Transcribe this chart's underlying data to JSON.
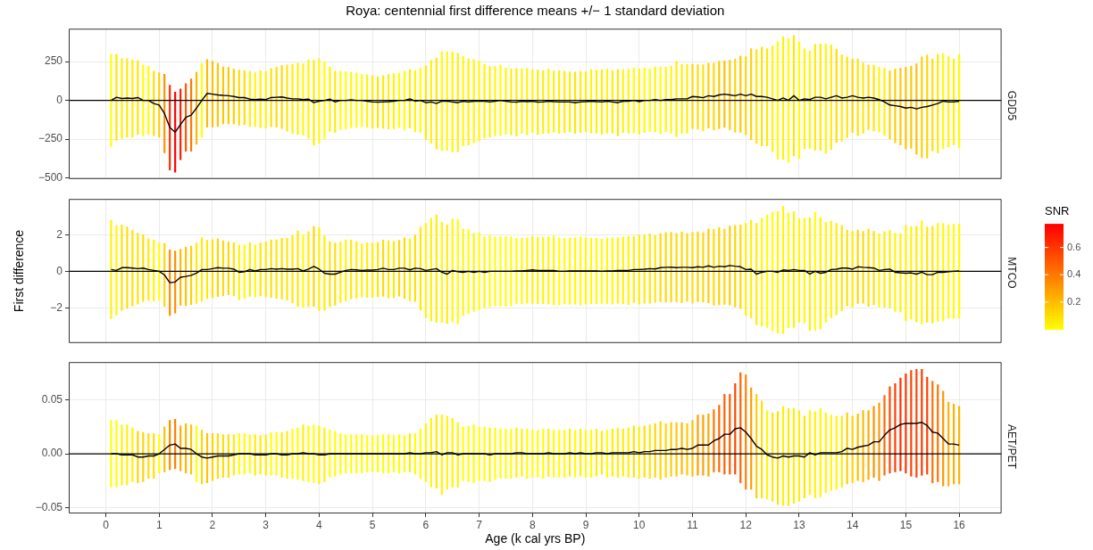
{
  "chart_data": [
    {
      "type": "line",
      "title": "Roya: centennial first difference means +/− 1 standard deviation",
      "subtitle": "GDD5",
      "xlim": [
        -0.695,
        16.795
      ],
      "xticks": [
        0,
        1,
        2,
        3,
        4,
        5,
        6,
        7,
        8,
        9,
        10,
        11,
        12,
        13,
        14,
        15,
        16
      ],
      "ylim": [
        -507,
        462
      ],
      "yticks": [
        {
          "value": -500,
          "label": "−500"
        },
        {
          "value": -250,
          "label": "−250"
        },
        0,
        250
      ],
      "tick_labels": "y",
      "grid": true,
      "ref_lines": [
        {
          "axis": "y",
          "value": 0,
          "color": "#000000"
        }
      ],
      "x": [
        0.1,
        0.2,
        0.3,
        0.4,
        0.5,
        0.6,
        0.7,
        0.8,
        0.9,
        1.0,
        1.1,
        1.2,
        1.3,
        1.4,
        1.5,
        1.6,
        1.7,
        1.8,
        1.9,
        2.0,
        2.1,
        2.2,
        2.3,
        2.4,
        2.5,
        2.6,
        2.7,
        2.8,
        2.9,
        3.0,
        3.1,
        3.2,
        3.3,
        3.4,
        3.5,
        3.6,
        3.7,
        3.8,
        3.9,
        4.0,
        4.1,
        4.2,
        4.3,
        4.4,
        4.5,
        4.6,
        4.7,
        4.8,
        4.9,
        5.0,
        5.1,
        5.2,
        5.3,
        5.4,
        5.5,
        5.6,
        5.7,
        5.8,
        5.9,
        6.0,
        6.1,
        6.2,
        6.3,
        6.4,
        6.5,
        6.6,
        6.7,
        6.8,
        6.9,
        7.0,
        7.1,
        7.2,
        7.3,
        7.4,
        7.5,
        7.6,
        7.7,
        7.8,
        7.9,
        8.0,
        8.1,
        8.2,
        8.3,
        8.4,
        8.5,
        8.6,
        8.7,
        8.8,
        8.9,
        9.0,
        9.1,
        9.2,
        9.3,
        9.4,
        9.5,
        9.6,
        9.7,
        9.8,
        9.9,
        10.0,
        10.1,
        10.2,
        10.3,
        10.4,
        10.5,
        10.6,
        10.7,
        10.8,
        10.9,
        11.0,
        11.1,
        11.2,
        11.3,
        11.4,
        11.5,
        11.6,
        11.7,
        11.8,
        11.9,
        12.0,
        12.1,
        12.2,
        12.3,
        12.4,
        12.5,
        12.6,
        12.7,
        12.8,
        12.9,
        13.0,
        13.1,
        13.2,
        13.3,
        13.4,
        13.5,
        13.6,
        13.7,
        13.8,
        13.9,
        14.0,
        14.1,
        14.2,
        14.3,
        14.4,
        14.5,
        14.6,
        14.7,
        14.8,
        14.9,
        15.0,
        15.1,
        15.2,
        15.3,
        15.4,
        15.5,
        15.6,
        15.7,
        15.8,
        15.9,
        16.0
      ],
      "series": [
        {
          "color": "#000000",
          "values": [
            0,
            20,
            12,
            15,
            12,
            18,
            0,
            0,
            -20,
            -30,
            -85,
            -175,
            -205,
            -155,
            -110,
            -95,
            -50,
            0,
            45,
            40,
            35,
            32,
            30,
            25,
            18,
            18,
            8,
            5,
            8,
            5,
            18,
            20,
            22,
            15,
            10,
            10,
            5,
            8,
            -15,
            -5,
            0,
            8,
            -10,
            0,
            0,
            3,
            0,
            0,
            -5,
            -10,
            -12,
            -10,
            -8,
            -5,
            0,
            0,
            10,
            -5,
            0,
            -15,
            -10,
            -20,
            -5,
            -5,
            -10,
            -15,
            -5,
            -10,
            -5,
            -5,
            -5,
            -10,
            -5,
            0,
            -5,
            -10,
            -12,
            -5,
            -8,
            -5,
            -12,
            -10,
            -5,
            -8,
            -10,
            -10,
            -10,
            -15,
            -10,
            -8,
            -5,
            -8,
            -10,
            -5,
            -10,
            -15,
            -5,
            -5,
            0,
            -8,
            0,
            0,
            5,
            0,
            5,
            5,
            10,
            10,
            10,
            25,
            22,
            17,
            30,
            25,
            35,
            40,
            35,
            30,
            40,
            30,
            40,
            25,
            25,
            20,
            10,
            0,
            15,
            0,
            30,
            0,
            10,
            5,
            20,
            20,
            10,
            20,
            30,
            15,
            20,
            30,
            20,
            15,
            20,
            15,
            5,
            -10,
            -30,
            -35,
            -40,
            -50,
            -45,
            -55,
            -45,
            -40,
            -30,
            -20,
            -5,
            -10,
            -10,
            -5
          ],
          "errors": [
            300,
            280,
            258,
            255,
            250,
            240,
            230,
            222,
            210,
            210,
            255,
            275,
            260,
            230,
            220,
            235,
            235,
            240,
            220,
            215,
            205,
            185,
            185,
            180,
            180,
            175,
            180,
            175,
            185,
            185,
            190,
            195,
            205,
            215,
            225,
            232,
            232,
            255,
            275,
            275,
            250,
            210,
            200,
            190,
            187,
            180,
            178,
            170,
            172,
            172,
            165,
            172,
            178,
            180,
            178,
            190,
            190,
            200,
            210,
            240,
            270,
            295,
            320,
            320,
            325,
            320,
            290,
            280,
            270,
            260,
            240,
            230,
            225,
            230,
            215,
            215,
            220,
            210,
            215,
            205,
            210,
            205,
            210,
            200,
            205,
            200,
            195,
            200,
            200,
            195,
            207,
            206,
            210,
            208,
            203,
            216,
            205,
            207,
            212,
            212,
            210,
            204,
            212,
            218,
            210,
            217,
            245,
            223,
            223,
            210,
            210,
            215,
            210,
            217,
            220,
            216,
            225,
            238,
            248,
            254,
            295,
            305,
            320,
            315,
            343,
            381,
            398,
            400,
            390,
            378,
            324,
            316,
            343,
            345,
            355,
            338,
            302,
            281,
            262,
            238,
            249,
            229,
            210,
            214,
            210,
            219,
            221,
            240,
            250,
            265,
            267,
            293,
            327,
            334,
            298,
            320,
            309,
            293,
            278,
            303
          ]
        }
      ]
    },
    {
      "type": "line",
      "subtitle": "MTCO",
      "ylabel": "First difference",
      "clabel": "SNR",
      "clim": [
        0,
        0.77
      ],
      "cticks": [
        0.2,
        0.4,
        0.6
      ],
      "xlim": [
        -0.695,
        16.795
      ],
      "xticks": [
        0,
        1,
        2,
        3,
        4,
        5,
        6,
        7,
        8,
        9,
        10,
        11,
        12,
        13,
        14,
        15,
        16
      ],
      "ylim": [
        -3.91,
        3.95
      ],
      "yticks": [
        {
          "value": -2,
          "label": "−2"
        },
        0,
        2
      ],
      "tick_labels": "y",
      "grid": true,
      "ref_lines": [
        {
          "axis": "y",
          "value": 0,
          "color": "#000000"
        }
      ],
      "x": [
        0.1,
        0.2,
        0.3,
        0.4,
        0.5,
        0.6,
        0.7,
        0.8,
        0.9,
        1.0,
        1.1,
        1.2,
        1.3,
        1.4,
        1.5,
        1.6,
        1.7,
        1.8,
        1.9,
        2.0,
        2.1,
        2.2,
        2.3,
        2.4,
        2.5,
        2.6,
        2.7,
        2.8,
        2.9,
        3.0,
        3.1,
        3.2,
        3.3,
        3.4,
        3.5,
        3.6,
        3.7,
        3.8,
        3.9,
        4.0,
        4.1,
        4.2,
        4.3,
        4.4,
        4.5,
        4.6,
        4.7,
        4.8,
        4.9,
        5.0,
        5.1,
        5.2,
        5.3,
        5.4,
        5.5,
        5.6,
        5.7,
        5.8,
        5.9,
        6.0,
        6.1,
        6.2,
        6.3,
        6.4,
        6.5,
        6.6,
        6.7,
        6.8,
        6.9,
        7.0,
        7.1,
        7.2,
        7.3,
        7.4,
        7.5,
        7.6,
        7.7,
        7.8,
        7.9,
        8.0,
        8.1,
        8.2,
        8.3,
        8.4,
        8.5,
        8.6,
        8.7,
        8.8,
        8.9,
        9.0,
        9.1,
        9.2,
        9.3,
        9.4,
        9.5,
        9.6,
        9.7,
        9.8,
        9.9,
        10.0,
        10.1,
        10.2,
        10.3,
        10.4,
        10.5,
        10.6,
        10.7,
        10.8,
        10.9,
        11.0,
        11.1,
        11.2,
        11.3,
        11.4,
        11.5,
        11.6,
        11.7,
        11.8,
        11.9,
        12.0,
        12.1,
        12.2,
        12.3,
        12.4,
        12.5,
        12.6,
        12.7,
        12.8,
        12.9,
        13.0,
        13.1,
        13.2,
        13.3,
        13.4,
        13.5,
        13.6,
        13.7,
        13.8,
        13.9,
        14.0,
        14.1,
        14.2,
        14.3,
        14.4,
        14.5,
        14.6,
        14.7,
        14.8,
        14.9,
        15.0,
        15.1,
        15.2,
        15.3,
        15.4,
        15.5,
        15.6,
        15.7,
        15.8,
        15.9,
        16.0
      ],
      "series": [
        {
          "color": "#000000",
          "values": [
            0.1,
            0.05,
            0.2,
            0.2,
            0.18,
            0.15,
            0.18,
            0.1,
            0.05,
            0,
            -0.2,
            -0.62,
            -0.58,
            -0.32,
            -0.28,
            -0.22,
            -0.1,
            0.1,
            0.1,
            0.15,
            0.2,
            0.17,
            0.17,
            0.12,
            -0.05,
            -0.02,
            0.1,
            0.02,
            0.1,
            0.1,
            0.15,
            0.12,
            0.15,
            0.12,
            0.12,
            0.15,
            0.02,
            0.12,
            0.27,
            0.12,
            -0.1,
            -0.15,
            -0.15,
            -0.05,
            0.05,
            0.1,
            0.08,
            0.05,
            0.07,
            0.07,
            0.1,
            0.17,
            0.1,
            0.1,
            0.17,
            0.17,
            0.08,
            0.17,
            0.15,
            0.05,
            0.1,
            0.15,
            -0.05,
            -0.15,
            0.05,
            -0.02,
            -0.05,
            0,
            -0.05,
            0,
            -0.05,
            0,
            0,
            0,
            0,
            0,
            0.02,
            0.02,
            0.05,
            0.08,
            0.05,
            0.05,
            0.05,
            0.05,
            0,
            0,
            0.02,
            0.02,
            0.02,
            0.02,
            0.02,
            0.02,
            0,
            0.02,
            0.02,
            0.05,
            0.05,
            0.05,
            0.1,
            0.1,
            0.12,
            0.15,
            0.13,
            0.2,
            0.22,
            0.23,
            0.2,
            0.22,
            0.22,
            0.2,
            0.25,
            0.22,
            0.3,
            0.22,
            0.28,
            0.25,
            0.32,
            0.28,
            0.25,
            0.1,
            0.12,
            -0.15,
            -0.05,
            0,
            0,
            -0.05,
            0.08,
            0.05,
            0.1,
            0.05,
            0.05,
            -0.15,
            0,
            -0.1,
            -0.05,
            0.1,
            0.12,
            0.18,
            0.18,
            0.12,
            0.25,
            0.22,
            0.2,
            0.18,
            0.05,
            0.1,
            0.12,
            -0.05,
            -0.08,
            -0.1,
            -0.08,
            -0.15,
            -0.05,
            -0.18,
            -0.18,
            -0.05,
            -0.05,
            -0.02,
            0,
            0.02
          ],
          "errors": [
            2.7,
            2.46,
            2.35,
            2.24,
            2.09,
            1.95,
            1.84,
            1.7,
            1.67,
            1.58,
            1.74,
            1.81,
            1.71,
            1.54,
            1.61,
            1.61,
            1.67,
            1.75,
            1.61,
            1.6,
            1.59,
            1.51,
            1.46,
            1.46,
            1.51,
            1.47,
            1.48,
            1.43,
            1.46,
            1.52,
            1.59,
            1.61,
            1.67,
            1.71,
            1.86,
            2.07,
            1.98,
            2.06,
            2.19,
            2.28,
            2.05,
            1.79,
            1.71,
            1.67,
            1.68,
            1.62,
            1.56,
            1.47,
            1.51,
            1.5,
            1.5,
            1.55,
            1.58,
            1.55,
            1.54,
            1.67,
            1.7,
            1.83,
            2.28,
            2.59,
            2.81,
            2.95,
            2.75,
            2.7,
            2.82,
            2.86,
            2.38,
            2.31,
            2.14,
            2.12,
            1.96,
            1.96,
            1.9,
            1.92,
            1.92,
            1.9,
            1.79,
            1.81,
            1.8,
            1.85,
            1.83,
            1.83,
            1.86,
            1.89,
            1.85,
            1.81,
            1.83,
            1.83,
            1.87,
            1.83,
            1.8,
            1.81,
            1.77,
            1.81,
            1.83,
            1.81,
            1.84,
            1.88,
            1.82,
            1.91,
            1.88,
            1.91,
            1.84,
            1.87,
            1.92,
            1.92,
            1.89,
            1.95,
            1.86,
            1.95,
            1.92,
            1.92,
            2.03,
            2.09,
            2.12,
            2.07,
            2.17,
            2.24,
            2.3,
            2.53,
            2.68,
            2.78,
            2.96,
            3.08,
            3.26,
            3.34,
            3.49,
            3.14,
            3.18,
            2.84,
            2.87,
            3.09,
            3.23,
            3.06,
            2.74,
            2.65,
            2.51,
            2.34,
            2.09,
            2.08,
            2.02,
            1.98,
            2.12,
            2.02,
            2.01,
            2.08,
            2.12,
            2.15,
            2.16,
            2.62,
            2.55,
            2.63,
            2.82,
            2.61,
            2.66,
            2.69,
            2.67,
            2.56,
            2.59,
            2.58
          ]
        }
      ]
    },
    {
      "type": "line",
      "subtitle": "AET/PET",
      "xlabel": "Age (k cal yrs BP)",
      "xlim": [
        -0.695,
        16.795
      ],
      "xticks": [
        0,
        1,
        2,
        3,
        4,
        5,
        6,
        7,
        8,
        9,
        10,
        11,
        12,
        13,
        14,
        15,
        16
      ],
      "ylim": [
        -0.055,
        0.0845
      ],
      "yticks": [
        {
          "value": -0.05,
          "label": "−0.05"
        },
        {
          "value": 0,
          "label": "0.00"
        },
        0.05
      ],
      "grid": true,
      "ref_lines": [
        {
          "axis": "y",
          "value": 0,
          "color": "#000000"
        }
      ],
      "x": [
        0.1,
        0.2,
        0.3,
        0.4,
        0.5,
        0.6,
        0.7,
        0.8,
        0.9,
        1.0,
        1.1,
        1.2,
        1.3,
        1.4,
        1.5,
        1.6,
        1.7,
        1.8,
        1.9,
        2.0,
        2.1,
        2.2,
        2.3,
        2.4,
        2.5,
        2.6,
        2.7,
        2.8,
        2.9,
        3.0,
        3.1,
        3.2,
        3.3,
        3.4,
        3.5,
        3.6,
        3.7,
        3.8,
        3.9,
        4.0,
        4.1,
        4.2,
        4.3,
        4.4,
        4.5,
        4.6,
        4.7,
        4.8,
        4.9,
        5.0,
        5.1,
        5.2,
        5.3,
        5.4,
        5.5,
        5.6,
        5.7,
        5.8,
        5.9,
        6.0,
        6.1,
        6.2,
        6.3,
        6.4,
        6.5,
        6.6,
        6.7,
        6.8,
        6.9,
        7.0,
        7.1,
        7.2,
        7.3,
        7.4,
        7.5,
        7.6,
        7.7,
        7.8,
        7.9,
        8.0,
        8.1,
        8.2,
        8.3,
        8.4,
        8.5,
        8.6,
        8.7,
        8.8,
        8.9,
        9.0,
        9.1,
        9.2,
        9.3,
        9.4,
        9.5,
        9.6,
        9.7,
        9.8,
        9.9,
        10.0,
        10.1,
        10.2,
        10.3,
        10.4,
        10.5,
        10.6,
        10.7,
        10.8,
        10.9,
        11.0,
        11.1,
        11.2,
        11.3,
        11.4,
        11.5,
        11.6,
        11.7,
        11.8,
        11.9,
        12.0,
        12.1,
        12.2,
        12.3,
        12.4,
        12.5,
        12.6,
        12.7,
        12.8,
        12.9,
        13.0,
        13.1,
        13.2,
        13.3,
        13.4,
        13.5,
        13.6,
        13.7,
        13.8,
        13.9,
        14.0,
        14.1,
        14.2,
        14.3,
        14.4,
        14.5,
        14.6,
        14.7,
        14.8,
        14.9,
        15.0,
        15.1,
        15.2,
        15.3,
        15.4,
        15.5,
        15.6,
        15.7,
        15.8,
        15.9,
        16.0
      ],
      "series": [
        {
          "color": "#000000",
          "values": [
            0,
            0,
            -0.001,
            -0.001,
            -0.001,
            -0.003,
            -0.003,
            -0.002,
            -0.002,
            0,
            0.004,
            0.008,
            0.009,
            0.005,
            0.005,
            0.004,
            0,
            -0.003,
            -0.004,
            -0.003,
            -0.002,
            -0.002,
            -0.002,
            -0.001,
            0,
            0,
            0,
            -0.001,
            -0.001,
            -0.001,
            0,
            0,
            -0.001,
            -0.001,
            0,
            0,
            0.001,
            0,
            0,
            -0.001,
            -0.001,
            0,
            0,
            0,
            0,
            0,
            0,
            0,
            0,
            0,
            0,
            0,
            0,
            0,
            0,
            0,
            0.001,
            0,
            0,
            0.001,
            0.001,
            0.002,
            -0.001,
            0.001,
            0.001,
            -0.001,
            0,
            0,
            0,
            0,
            0,
            -0.001,
            0,
            0,
            0,
            0,
            0.001,
            0.001,
            0,
            0,
            0,
            0,
            0.001,
            0,
            0,
            0,
            0.001,
            0,
            0.001,
            0,
            0,
            0.001,
            0.001,
            0,
            0.001,
            0.001,
            0.001,
            0.001,
            0.002,
            0.001,
            0.002,
            0.002,
            0.003,
            0.003,
            0.003,
            0.004,
            0.004,
            0.005,
            0.004,
            0.005,
            0.008,
            0.008,
            0.008,
            0.012,
            0.014,
            0.018,
            0.018,
            0.023,
            0.024,
            0.02,
            0.014,
            0.007,
            0.004,
            -0.001,
            -0.003,
            -0.004,
            -0.002,
            -0.003,
            -0.002,
            -0.002,
            -0.003,
            0.001,
            -0.001,
            0.001,
            0.001,
            0.001,
            0.001,
            0.002,
            0.005,
            0.004,
            0.006,
            0.007,
            0.008,
            0.011,
            0.011,
            0.017,
            0.022,
            0.024,
            0.027,
            0.028,
            0.028,
            0.028,
            0.029,
            0.026,
            0.02,
            0.019,
            0.014,
            0.009,
            0.009,
            0.008
          ],
          "errors": [
            0.031,
            0.031,
            0.028,
            0.028,
            0.025,
            0.024,
            0.023,
            0.021,
            0.021,
            0.018,
            0.021,
            0.023,
            0.023,
            0.021,
            0.023,
            0.023,
            0.026,
            0.025,
            0.023,
            0.022,
            0.021,
            0.02,
            0.02,
            0.019,
            0.019,
            0.019,
            0.018,
            0.019,
            0.018,
            0.019,
            0.02,
            0.02,
            0.021,
            0.022,
            0.023,
            0.024,
            0.026,
            0.026,
            0.027,
            0.027,
            0.025,
            0.022,
            0.021,
            0.019,
            0.018,
            0.018,
            0.018,
            0.018,
            0.017,
            0.017,
            0.017,
            0.018,
            0.018,
            0.017,
            0.018,
            0.017,
            0.018,
            0.019,
            0.023,
            0.027,
            0.032,
            0.034,
            0.037,
            0.034,
            0.032,
            0.03,
            0.025,
            0.026,
            0.027,
            0.025,
            0.025,
            0.025,
            0.024,
            0.023,
            0.023,
            0.023,
            0.023,
            0.022,
            0.023,
            0.022,
            0.022,
            0.023,
            0.022,
            0.022,
            0.022,
            0.022,
            0.022,
            0.022,
            0.022,
            0.022,
            0.022,
            0.022,
            0.02,
            0.022,
            0.022,
            0.023,
            0.022,
            0.023,
            0.024,
            0.024,
            0.024,
            0.025,
            0.025,
            0.027,
            0.025,
            0.025,
            0.025,
            0.024,
            0.024,
            0.026,
            0.028,
            0.028,
            0.029,
            0.029,
            0.031,
            0.037,
            0.037,
            0.042,
            0.051,
            0.053,
            0.047,
            0.048,
            0.045,
            0.041,
            0.041,
            0.043,
            0.046,
            0.045,
            0.044,
            0.042,
            0.038,
            0.039,
            0.04,
            0.041,
            0.037,
            0.035,
            0.034,
            0.033,
            0.033,
            0.031,
            0.031,
            0.033,
            0.032,
            0.033,
            0.036,
            0.037,
            0.04,
            0.041,
            0.043,
            0.046,
            0.049,
            0.05,
            0.049,
            0.045,
            0.047,
            0.045,
            0.044,
            0.039,
            0.037,
            0.036
          ]
        }
      ]
    }
  ]
}
